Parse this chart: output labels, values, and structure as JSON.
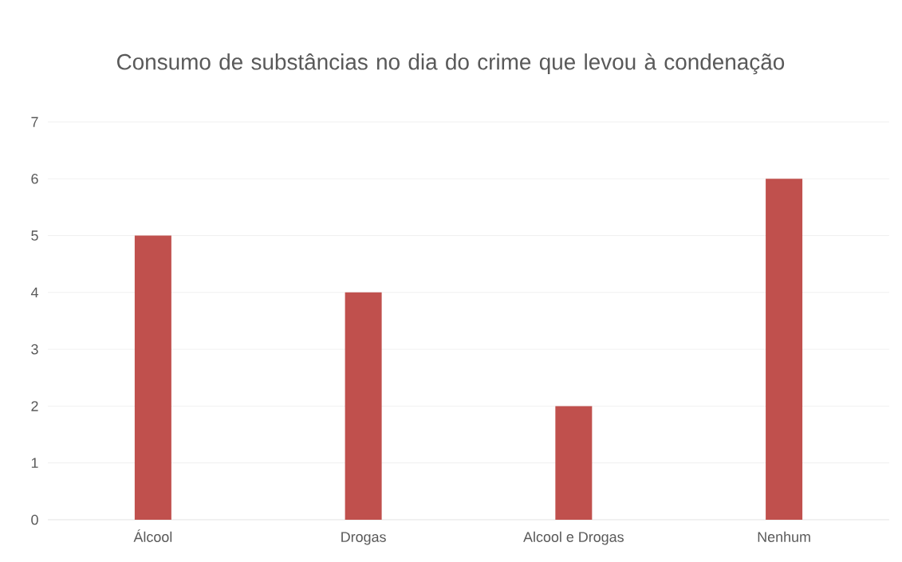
{
  "chart_data": {
    "type": "bar",
    "title": "Consumo de substâncias no dia do crime que levou à condenação",
    "categories": [
      "Álcool",
      "Drogas",
      "Alcool e Drogas",
      "Nenhum"
    ],
    "values": [
      5,
      4,
      2,
      6
    ],
    "color": "#c0504d",
    "ylim": [
      0,
      7
    ],
    "yticks": [
      0,
      1,
      2,
      3,
      4,
      5,
      6,
      7
    ],
    "grid": "y"
  }
}
